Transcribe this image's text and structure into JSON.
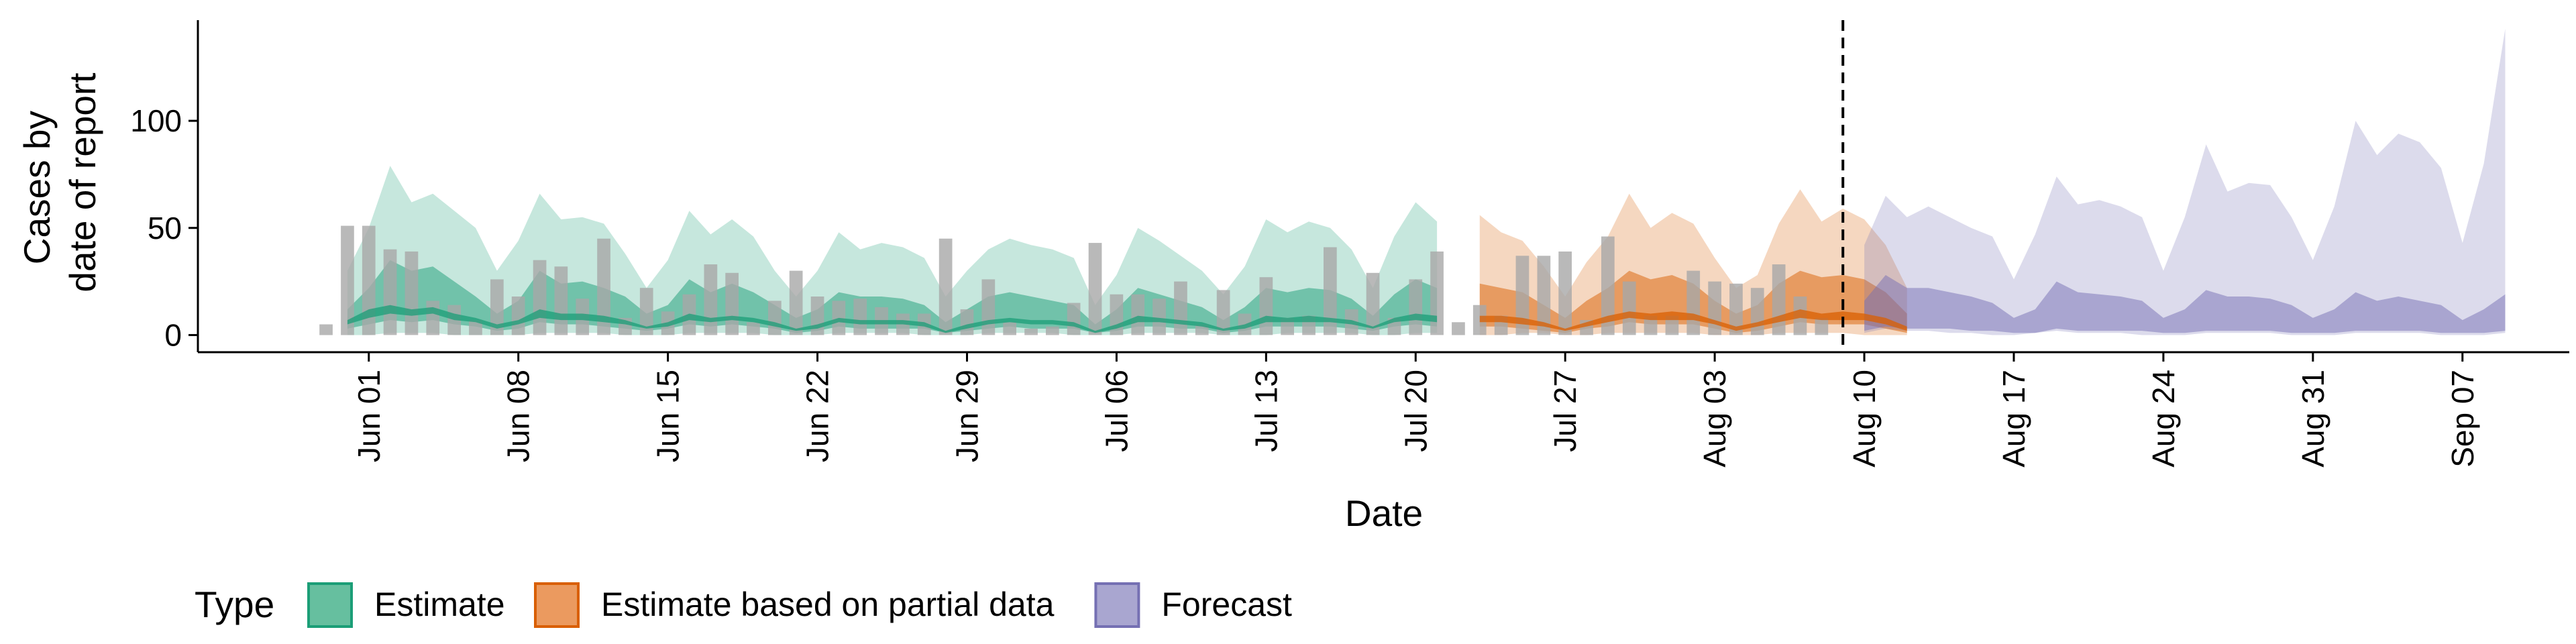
{
  "chart_data": {
    "type": "area",
    "xlabel": "Date",
    "ylabel_lines": [
      "Cases by",
      "date of report"
    ],
    "ylim": [
      -8,
      147
    ],
    "yticks": [
      0,
      50,
      100
    ],
    "xlim": [
      "2020-05-24",
      "2020-09-12"
    ],
    "xticks": [
      {
        "date": "2020-06-01",
        "label": "Jun 01"
      },
      {
        "date": "2020-06-08",
        "label": "Jun 08"
      },
      {
        "date": "2020-06-15",
        "label": "Jun 15"
      },
      {
        "date": "2020-06-22",
        "label": "Jun 22"
      },
      {
        "date": "2020-06-29",
        "label": "Jun 29"
      },
      {
        "date": "2020-07-06",
        "label": "Jul 06"
      },
      {
        "date": "2020-07-13",
        "label": "Jul 13"
      },
      {
        "date": "2020-07-20",
        "label": "Jul 20"
      },
      {
        "date": "2020-07-27",
        "label": "Jul 27"
      },
      {
        "date": "2020-08-03",
        "label": "Aug 03"
      },
      {
        "date": "2020-08-10",
        "label": "Aug 10"
      },
      {
        "date": "2020-08-17",
        "label": "Aug 17"
      },
      {
        "date": "2020-08-24",
        "label": "Aug 24"
      },
      {
        "date": "2020-08-31",
        "label": "Aug 31"
      },
      {
        "date": "2020-09-07",
        "label": "Sep 07"
      }
    ],
    "vline_date": "2020-08-09",
    "grid": false,
    "legend": {
      "title": "Type",
      "placement": "bottom-left",
      "entries": [
        {
          "label": "Estimate",
          "fill": "#66bf9f",
          "stroke": "#1b9e77"
        },
        {
          "label": "Estimate based on partial data",
          "fill": "#eb9a5f",
          "stroke": "#d95f02"
        },
        {
          "label": "Forecast",
          "fill": "#a9a6d0",
          "stroke": "#7570b3"
        }
      ]
    },
    "series": [
      {
        "type_label": "Estimate",
        "fill": "#1b9e77",
        "start": "2020-05-31",
        "outer_upper": [
          30,
          50,
          79,
          62,
          66,
          58,
          50,
          30,
          44,
          66,
          54,
          55,
          52,
          38,
          22,
          35,
          58,
          47,
          54,
          46,
          30,
          18,
          30,
          48,
          40,
          43,
          41,
          36,
          18,
          30,
          40,
          45,
          42,
          40,
          36,
          14,
          28,
          50,
          44,
          37,
          30,
          19,
          32,
          54,
          48,
          53,
          50,
          40,
          22,
          46,
          62,
          53
        ],
        "outer_lower": [
          0,
          0,
          1,
          1,
          1,
          0,
          0,
          0,
          0,
          1,
          1,
          1,
          1,
          0,
          0,
          0,
          1,
          1,
          1,
          1,
          0,
          0,
          0,
          1,
          1,
          1,
          1,
          0,
          0,
          0,
          1,
          1,
          1,
          1,
          0,
          0,
          0,
          1,
          1,
          1,
          1,
          0,
          0,
          0,
          1,
          1,
          1,
          1,
          0,
          0,
          1,
          1
        ],
        "inner_upper": [
          12,
          22,
          35,
          30,
          32,
          25,
          18,
          10,
          16,
          30,
          24,
          25,
          22,
          18,
          10,
          14,
          26,
          20,
          24,
          20,
          14,
          8,
          12,
          20,
          18,
          18,
          17,
          14,
          6,
          12,
          18,
          20,
          18,
          16,
          14,
          5,
          12,
          22,
          19,
          16,
          13,
          7,
          13,
          22,
          20,
          22,
          21,
          17,
          9,
          19,
          26,
          22
        ],
        "inner_lower": [
          3,
          5,
          7,
          6,
          7,
          5,
          4,
          2,
          3,
          6,
          5,
          5,
          4,
          3,
          2,
          3,
          5,
          4,
          5,
          4,
          3,
          1,
          2,
          4,
          3,
          3,
          3,
          3,
          1,
          2,
          3,
          4,
          3,
          3,
          3,
          1,
          2,
          4,
          4,
          3,
          3,
          1,
          2,
          4,
          4,
          4,
          4,
          3,
          2,
          4,
          5,
          4
        ],
        "mid_upper": [
          7,
          12,
          14,
          12,
          13,
          10,
          8,
          5,
          7,
          12,
          10,
          10,
          9,
          7,
          4,
          6,
          10,
          8,
          9,
          8,
          6,
          3,
          5,
          8,
          7,
          7,
          7,
          6,
          2,
          5,
          7,
          8,
          7,
          7,
          6,
          2,
          5,
          9,
          8,
          7,
          6,
          3,
          5,
          9,
          8,
          9,
          8,
          7,
          4,
          8,
          10,
          9
        ],
        "mid_lower": [
          5,
          8,
          10,
          9,
          10,
          7,
          6,
          3,
          5,
          8,
          7,
          7,
          6,
          5,
          3,
          4,
          7,
          6,
          7,
          6,
          4,
          2,
          3,
          6,
          5,
          5,
          5,
          4,
          1,
          3,
          5,
          6,
          5,
          5,
          4,
          1,
          3,
          6,
          6,
          5,
          4,
          2,
          3,
          6,
          6,
          6,
          6,
          5,
          3,
          6,
          7,
          6
        ]
      },
      {
        "type_label": "Estimate based on partial data",
        "fill": "#d95f02",
        "start": "2020-07-23",
        "outer_upper": [
          56,
          48,
          44,
          32,
          18,
          34,
          46,
          66,
          50,
          57,
          52,
          36,
          22,
          28,
          52,
          68,
          53,
          59,
          54,
          42,
          22
        ],
        "outer_lower": [
          0,
          0,
          1,
          1,
          0,
          0,
          1,
          1,
          1,
          1,
          1,
          0,
          0,
          0,
          1,
          1,
          1,
          1,
          0,
          0,
          0
        ],
        "inner_upper": [
          24,
          22,
          20,
          14,
          8,
          16,
          22,
          30,
          26,
          28,
          24,
          16,
          10,
          14,
          24,
          30,
          27,
          28,
          26,
          20,
          10
        ],
        "inner_lower": [
          4,
          4,
          3,
          2,
          1,
          3,
          4,
          6,
          5,
          5,
          5,
          3,
          1,
          2,
          4,
          6,
          5,
          5,
          5,
          3,
          1
        ],
        "mid_upper": [
          9,
          9,
          8,
          6,
          3,
          6,
          9,
          11,
          10,
          11,
          10,
          7,
          4,
          6,
          9,
          12,
          10,
          11,
          10,
          8,
          4
        ],
        "mid_lower": [
          6,
          6,
          5,
          4,
          2,
          4,
          6,
          8,
          7,
          7,
          7,
          5,
          2,
          4,
          6,
          8,
          7,
          7,
          7,
          5,
          2
        ]
      },
      {
        "type_label": "Forecast",
        "fill": "#7570b3",
        "start": "2020-08-10",
        "outer_upper": [
          42,
          65,
          55,
          60,
          55,
          50,
          46,
          26,
          47,
          74,
          61,
          63,
          60,
          55,
          30,
          55,
          89,
          67,
          71,
          70,
          55,
          35,
          60,
          100,
          84,
          94,
          90,
          78,
          43,
          80,
          143
        ],
        "outer_lower": [
          1,
          3,
          2,
          2,
          1,
          1,
          0,
          0,
          1,
          2,
          1,
          1,
          1,
          0,
          0,
          0,
          1,
          1,
          1,
          1,
          0,
          0,
          0,
          1,
          1,
          1,
          1,
          0,
          0,
          0,
          1
        ],
        "inner_upper": [
          16,
          28,
          22,
          22,
          20,
          18,
          15,
          8,
          12,
          25,
          20,
          19,
          18,
          16,
          8,
          12,
          21,
          18,
          18,
          17,
          14,
          8,
          12,
          20,
          16,
          18,
          16,
          14,
          7,
          12,
          19
        ],
        "inner_lower": [
          2,
          4,
          3,
          3,
          3,
          2,
          2,
          1,
          1,
          3,
          2,
          2,
          2,
          2,
          1,
          1,
          2,
          2,
          2,
          2,
          1,
          1,
          1,
          2,
          2,
          2,
          2,
          1,
          1,
          1,
          2
        ]
      }
    ],
    "bars": {
      "fill": "#a8a8a8",
      "start": "2020-05-30",
      "values": [
        5,
        51,
        51,
        40,
        39,
        16,
        14,
        7,
        26,
        18,
        35,
        32,
        17,
        45,
        8,
        22,
        11,
        19,
        33,
        29,
        6,
        16,
        30,
        18,
        16,
        17,
        13,
        10,
        10,
        45,
        12,
        26,
        6,
        3,
        4,
        15,
        43,
        19,
        19,
        17,
        25,
        5,
        21,
        10,
        27,
        8,
        9,
        41,
        12,
        29,
        8,
        26,
        39,
        6,
        14,
        9,
        37,
        37,
        39,
        7,
        46,
        25,
        9,
        9,
        30,
        25,
        24,
        22,
        33,
        18,
        8
      ]
    }
  }
}
